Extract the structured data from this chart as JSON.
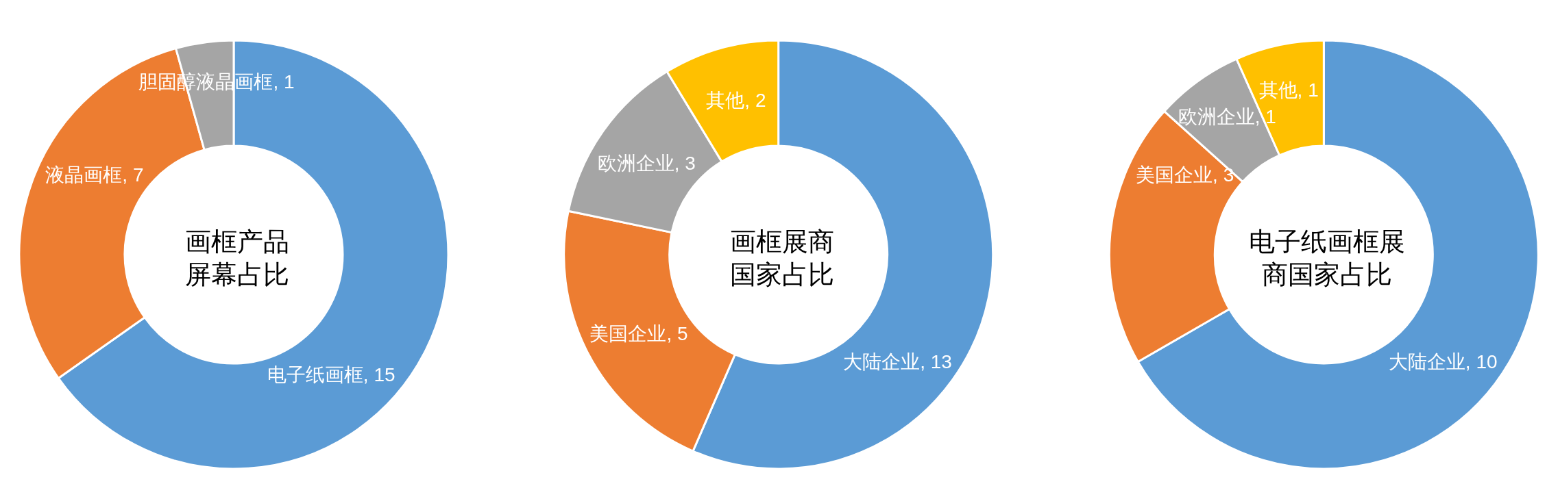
{
  "chart_data": [
    {
      "type": "donut",
      "title": "画框产品屏幕占比",
      "categories": [
        "电子纸画框",
        "液晶画框",
        "胆固醇液晶画框"
      ],
      "values": [
        15,
        7,
        1
      ],
      "colors": [
        "#5b9bd5",
        "#ed7d31",
        "#a5a5a5"
      ],
      "value_labels": [
        ", 15",
        ", 7",
        ", 1"
      ]
    },
    {
      "type": "donut",
      "title": "画框展商国家占比",
      "categories": [
        "大陆企业",
        "美国企业",
        "欧洲企业",
        "其他"
      ],
      "values": [
        13,
        5,
        3,
        2
      ],
      "colors": [
        "#5b9bd5",
        "#ed7d31",
        "#a5a5a5",
        "#ffc000"
      ],
      "value_labels": [
        ", 13",
        ", 5",
        ", 3",
        ", 2"
      ]
    },
    {
      "type": "donut",
      "title": "电子纸画框展商国家占比",
      "categories": [
        "大陆企业",
        "美国企业",
        "欧洲企业",
        "其他"
      ],
      "values": [
        10,
        3,
        1,
        1
      ],
      "colors": [
        "#5b9bd5",
        "#ed7d31",
        "#a5a5a5",
        "#ffc000"
      ],
      "value_labels": [
        ", 10",
        ", 3",
        ", 1",
        ", 1"
      ]
    }
  ]
}
